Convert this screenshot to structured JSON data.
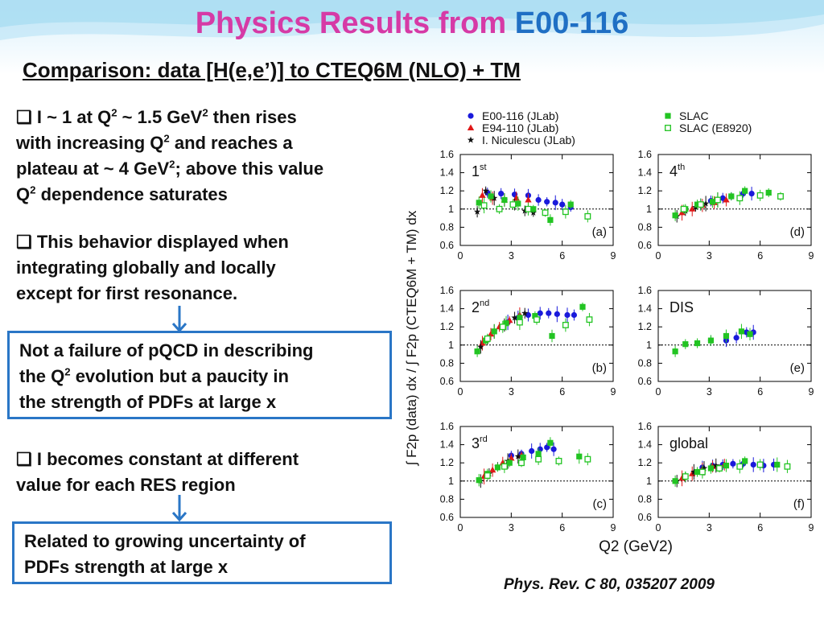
{
  "slide": {
    "title_main": "Physics Results from ",
    "title_accent": "E00-116",
    "subtitle": "Comparison: data [H(e,e’)] to CTEQ6M (NLO) + TM",
    "citation": "Phys. Rev. C 80, 035207 2009",
    "bullet_glyph": "❑",
    "bullet1": {
      "p1": "I ~ 1 at Q",
      "s1": "2",
      "p2": " ~ 1.5 GeV",
      "s2": "2",
      "p3": " then rises",
      "p4": "with increasing Q",
      "s3": "2",
      "p5": " and reaches a",
      "p6": "plateau at ~ 4 GeV",
      "s4": "2",
      "p7": "; above this value",
      "p8": "Q",
      "s5": "2",
      "p9": " dependence saturates"
    },
    "bullet2": {
      "l1": "This behavior displayed when",
      "l2": "integrating globally and locally",
      "l3": "except for first resonance."
    },
    "box1": {
      "l1": "Not a failure of pQCD in describing",
      "l2a": "the Q",
      "l2s": "2",
      "l2b": " evolution but a paucity in",
      "l3": "the strength of PDFs at large x"
    },
    "bullet3": {
      "l1": "I becomes constant at different",
      "l2": "value for each RES region"
    },
    "box2": {
      "l1": "Related to growing uncertainty of",
      "l2": "PDFs strength at large x"
    },
    "colors": {
      "title": "#d63aa6",
      "accent": "#1f6fc4",
      "box_border": "#2a76c6"
    }
  },
  "chart_data": {
    "type": "scatter",
    "ylabel": "∫ F2p (data) dx / ∫ F2p (CTEQ6M + TM) dx",
    "xlabel": "Q2 (GeV2)",
    "xlim": [
      0,
      9
    ],
    "ylim": [
      0.6,
      1.6
    ],
    "xticks": [
      "0",
      "3",
      "6",
      "9"
    ],
    "yticks": [
      "0.6",
      "0.8",
      "1",
      "1.2",
      "1.4",
      "1.6"
    ],
    "reference_line": 1,
    "legend": [
      {
        "name": "E00-116 (JLab)",
        "marker": "circle",
        "color": "#1a1adb"
      },
      {
        "name": "E94-110 (JLab)",
        "marker": "triangle",
        "color": "#e01818"
      },
      {
        "name": "I. Niculescu (JLab)",
        "marker": "star",
        "color": "#111111"
      },
      {
        "name": "SLAC",
        "marker": "square",
        "color": "#22c422"
      },
      {
        "name": "SLAC (E8920)",
        "marker": "open-square",
        "color": "#22c422"
      }
    ],
    "panels": [
      {
        "label": "(a)",
        "region": "1",
        "region_sup": "st",
        "series": [
          {
            "name": "E00-116 (JLab)",
            "points": [
              [
                1.6,
                1.18
              ],
              [
                2.4,
                1.17
              ],
              [
                3.2,
                1.16
              ],
              [
                4.0,
                1.15
              ],
              [
                4.6,
                1.1
              ],
              [
                5.1,
                1.08
              ],
              [
                5.6,
                1.07
              ],
              [
                6.0,
                1.05
              ],
              [
                6.5,
                1.02
              ]
            ]
          },
          {
            "name": "E94-110 (JLab)",
            "points": [
              [
                1.3,
                1.15
              ],
              [
                1.9,
                1.12
              ],
              [
                2.6,
                1.1
              ],
              [
                3.3,
                1.12
              ],
              [
                4.0,
                1.1
              ]
            ]
          },
          {
            "name": "I. Niculescu (JLab)",
            "points": [
              [
                1.0,
                0.97
              ],
              [
                1.5,
                1.2
              ],
              [
                2.0,
                1.12
              ],
              [
                2.6,
                1.1
              ],
              [
                3.2,
                1.05
              ],
              [
                3.8,
                0.98
              ],
              [
                4.3,
                0.96
              ]
            ]
          },
          {
            "name": "SLAC",
            "points": [
              [
                1.1,
                1.07
              ],
              [
                1.8,
                1.14
              ],
              [
                2.6,
                1.1
              ],
              [
                3.4,
                1.06
              ],
              [
                4.3,
                1.0
              ],
              [
                5.3,
                0.88
              ],
              [
                6.5,
                1.05
              ]
            ]
          },
          {
            "name": "SLAC (E8920)",
            "points": [
              [
                1.4,
                1.04
              ],
              [
                2.3,
                1.0
              ],
              [
                3.1,
                1.05
              ],
              [
                4.0,
                1.0
              ],
              [
                5.0,
                0.96
              ],
              [
                6.2,
                0.97
              ],
              [
                7.5,
                0.92
              ]
            ]
          }
        ]
      },
      {
        "label": "(d)",
        "region": "4",
        "region_sup": "th",
        "series": [
          {
            "name": "E00-116 (JLab)",
            "points": [
              [
                2.5,
                1.05
              ],
              [
                3.1,
                1.09
              ],
              [
                3.8,
                1.12
              ],
              [
                4.3,
                1.14
              ],
              [
                5.0,
                1.17
              ],
              [
                5.5,
                1.17
              ]
            ]
          },
          {
            "name": "E94-110 (JLab)",
            "points": [
              [
                1.4,
                0.96
              ],
              [
                2.0,
                1.0
              ],
              [
                2.6,
                1.04
              ],
              [
                3.3,
                1.07
              ],
              [
                4.0,
                1.1
              ]
            ]
          },
          {
            "name": "I. Niculescu (JLab)",
            "points": [
              [
                1.1,
                0.92
              ],
              [
                1.6,
                0.98
              ],
              [
                2.2,
                1.02
              ],
              [
                2.8,
                1.06
              ],
              [
                3.5,
                1.1
              ]
            ]
          },
          {
            "name": "SLAC",
            "points": [
              [
                1.0,
                0.93
              ],
              [
                1.6,
                1.0
              ],
              [
                2.3,
                1.05
              ],
              [
                3.2,
                1.08
              ],
              [
                4.3,
                1.14
              ],
              [
                5.1,
                1.2
              ],
              [
                6.5,
                1.18
              ]
            ]
          },
          {
            "name": "SLAC (E8920)",
            "points": [
              [
                1.5,
                1.0
              ],
              [
                2.5,
                1.05
              ],
              [
                3.5,
                1.1
              ],
              [
                4.8,
                1.12
              ],
              [
                6.0,
                1.15
              ],
              [
                7.2,
                1.14
              ]
            ]
          }
        ]
      },
      {
        "label": "(b)",
        "region": "2",
        "region_sup": "nd",
        "series": [
          {
            "name": "E00-116 (JLab)",
            "points": [
              [
                2.8,
                1.25
              ],
              [
                3.4,
                1.3
              ],
              [
                4.0,
                1.33
              ],
              [
                4.7,
                1.35
              ],
              [
                5.2,
                1.35
              ],
              [
                5.7,
                1.34
              ],
              [
                6.3,
                1.33
              ],
              [
                6.7,
                1.33
              ]
            ]
          },
          {
            "name": "E94-110 (JLab)",
            "points": [
              [
                1.3,
                1.02
              ],
              [
                1.8,
                1.12
              ],
              [
                2.3,
                1.2
              ],
              [
                2.9,
                1.27
              ],
              [
                3.5,
                1.33
              ]
            ]
          },
          {
            "name": "I. Niculescu (JLab)",
            "points": [
              [
                1.2,
                0.98
              ],
              [
                1.6,
                1.06
              ],
              [
                2.0,
                1.15
              ],
              [
                2.6,
                1.22
              ],
              [
                3.2,
                1.3
              ],
              [
                3.8,
                1.35
              ]
            ]
          },
          {
            "name": "SLAC",
            "points": [
              [
                1.0,
                0.93
              ],
              [
                1.5,
                1.05
              ],
              [
                2.0,
                1.15
              ],
              [
                2.7,
                1.24
              ],
              [
                3.5,
                1.3
              ],
              [
                4.4,
                1.32
              ],
              [
                5.4,
                1.1
              ],
              [
                7.2,
                1.42
              ]
            ]
          },
          {
            "name": "SLAC (E8920)",
            "points": [
              [
                1.6,
                1.07
              ],
              [
                2.5,
                1.2
              ],
              [
                3.5,
                1.25
              ],
              [
                4.5,
                1.28
              ],
              [
                6.2,
                1.22
              ],
              [
                7.6,
                1.28
              ]
            ]
          }
        ]
      },
      {
        "label": "(e)",
        "region": "DIS",
        "region_sup": "",
        "series": [
          {
            "name": "E00-116 (JLab)",
            "points": [
              [
                3.1,
                1.05
              ],
              [
                4.0,
                1.05
              ],
              [
                4.6,
                1.08
              ],
              [
                5.2,
                1.14
              ],
              [
                5.6,
                1.14
              ]
            ]
          },
          {
            "name": "E94-110 (JLab)",
            "points": []
          },
          {
            "name": "I. Niculescu (JLab)",
            "points": []
          },
          {
            "name": "SLAC",
            "points": [
              [
                1.0,
                0.93
              ],
              [
                1.6,
                1.01
              ],
              [
                2.3,
                1.02
              ],
              [
                3.1,
                1.05
              ],
              [
                4.0,
                1.1
              ],
              [
                4.9,
                1.15
              ],
              [
                5.4,
                1.12
              ]
            ]
          },
          {
            "name": "SLAC (E8920)",
            "points": []
          }
        ]
      },
      {
        "label": "(c)",
        "region": "3",
        "region_sup": "rd",
        "series": [
          {
            "name": "E00-116 (JLab)",
            "points": [
              [
                3.0,
                1.28
              ],
              [
                3.6,
                1.3
              ],
              [
                4.2,
                1.33
              ],
              [
                4.7,
                1.35
              ],
              [
                5.1,
                1.37
              ],
              [
                5.5,
                1.35
              ]
            ]
          },
          {
            "name": "E94-110 (JLab)",
            "points": [
              [
                1.4,
                1.05
              ],
              [
                1.9,
                1.12
              ],
              [
                2.5,
                1.2
              ],
              [
                3.0,
                1.25
              ],
              [
                3.6,
                1.28
              ]
            ]
          },
          {
            "name": "I. Niculescu (JLab)",
            "points": [
              [
                1.2,
                1.0
              ],
              [
                1.7,
                1.08
              ],
              [
                2.2,
                1.16
              ],
              [
                2.8,
                1.22
              ],
              [
                3.4,
                1.27
              ]
            ]
          },
          {
            "name": "SLAC",
            "points": [
              [
                1.1,
                1.01
              ],
              [
                1.6,
                1.08
              ],
              [
                2.2,
                1.15
              ],
              [
                2.9,
                1.2
              ],
              [
                3.7,
                1.26
              ],
              [
                4.6,
                1.3
              ],
              [
                5.3,
                1.42
              ],
              [
                7.0,
                1.27
              ]
            ]
          },
          {
            "name": "SLAC (E8920)",
            "points": [
              [
                1.6,
                1.06
              ],
              [
                2.6,
                1.16
              ],
              [
                3.6,
                1.2
              ],
              [
                4.6,
                1.24
              ],
              [
                5.8,
                1.22
              ],
              [
                7.5,
                1.24
              ]
            ]
          }
        ]
      },
      {
        "label": "(f)",
        "region": "global",
        "region_sup": "",
        "series": [
          {
            "name": "E00-116 (JLab)",
            "points": [
              [
                2.6,
                1.15
              ],
              [
                3.2,
                1.17
              ],
              [
                3.8,
                1.18
              ],
              [
                4.4,
                1.19
              ],
              [
                5.0,
                1.19
              ],
              [
                5.6,
                1.18
              ],
              [
                6.2,
                1.17
              ],
              [
                6.8,
                1.18
              ]
            ]
          },
          {
            "name": "E94-110 (JLab)",
            "points": [
              [
                1.4,
                1.03
              ],
              [
                2.0,
                1.08
              ],
              [
                2.6,
                1.13
              ],
              [
                3.2,
                1.16
              ],
              [
                3.9,
                1.18
              ]
            ]
          },
          {
            "name": "I. Niculescu (JLab)",
            "points": [
              [
                1.1,
                1.0
              ],
              [
                1.6,
                1.04
              ],
              [
                2.1,
                1.1
              ],
              [
                2.7,
                1.14
              ],
              [
                3.4,
                1.17
              ]
            ]
          },
          {
            "name": "SLAC",
            "points": [
              [
                1.0,
                1.0
              ],
              [
                1.6,
                1.05
              ],
              [
                2.3,
                1.1
              ],
              [
                3.1,
                1.14
              ],
              [
                4.0,
                1.17
              ],
              [
                5.1,
                1.22
              ],
              [
                7.0,
                1.18
              ]
            ]
          },
          {
            "name": "SLAC (E8920)",
            "points": [
              [
                1.6,
                1.05
              ],
              [
                2.6,
                1.1
              ],
              [
                3.6,
                1.14
              ],
              [
                4.8,
                1.16
              ],
              [
                6.0,
                1.18
              ],
              [
                7.6,
                1.16
              ]
            ]
          }
        ]
      }
    ]
  }
}
